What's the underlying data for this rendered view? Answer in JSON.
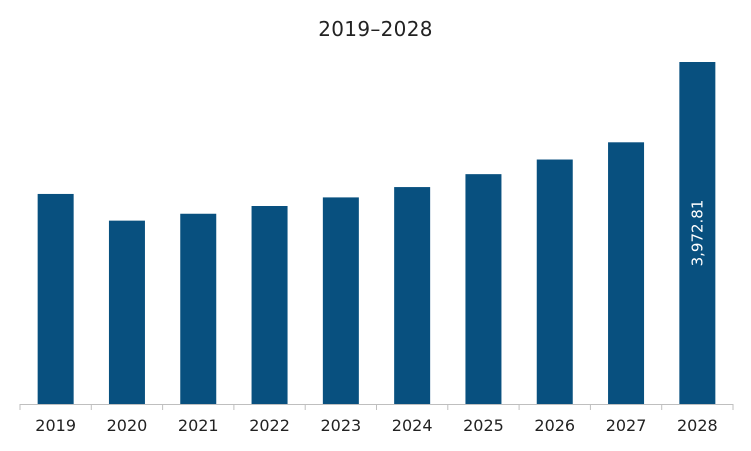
{
  "chart_data": {
    "type": "bar",
    "title": "2019–2028",
    "xlabel": "",
    "ylabel": "",
    "categories": [
      "2019",
      "2020",
      "2021",
      "2022",
      "2023",
      "2024",
      "2025",
      "2026",
      "2027",
      "2028"
    ],
    "values": [
      2440,
      2130,
      2210,
      2300,
      2400,
      2520,
      2670,
      2840,
      3040,
      3972.81
    ],
    "data_labels": [
      "",
      "",
      "",
      "",
      "",
      "",
      "",
      "",
      "",
      "3,972.81"
    ],
    "ylim": [
      0,
      4000
    ],
    "grid": false,
    "legend": "none",
    "bar_color": "#08507f",
    "axis_color": "#bfbfbf"
  }
}
